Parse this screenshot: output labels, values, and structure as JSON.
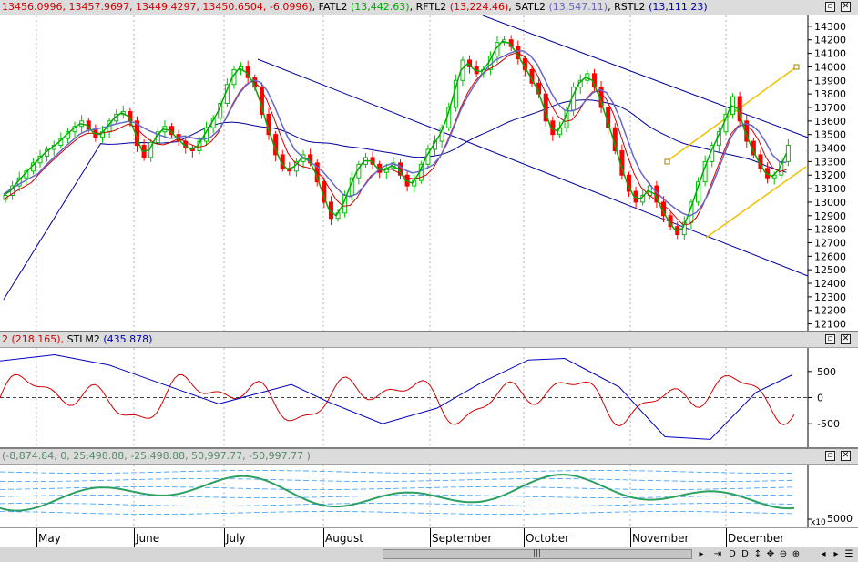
{
  "chart_header": {
    "ohlc": "13456.0996, 13457.9697, 13449.4297, 13450.6504, -6.0996)",
    "fatl_name": "FATL2",
    "fatl_val": "(13,442.63)",
    "rftl_name": "RFTL2",
    "rftl_val": "(13,224.46)",
    "satl_name": "SATL2",
    "satl_val": "(13,547.11)",
    "rstl_name": "RSTL2",
    "rstl_val": "(13,111.23)"
  },
  "osc_header": {
    "left_val": "2 (218.165),",
    "stlm_name": "STLM2",
    "stlm_val": "(435.878)"
  },
  "third_header": {
    "values": "(-8,874.84, 0, 25,498.88, -25,498.88, 50,997.77, -50,997.77 )"
  },
  "colors": {
    "up_candle": "#00c000",
    "down_candle": "#ff0000",
    "fatl": "#00aa00",
    "rftl": "#d00000",
    "satl": "#6666cc",
    "rstl": "#0000a0",
    "trend": "#0000a0",
    "channel": "#f0c000",
    "osc_red": "#d00000",
    "osc_blue": "#0000c0",
    "band": "#3399ff",
    "green_line": "#2ca060"
  },
  "third_panel": {
    "unit_label": "x10"
  },
  "x_axis": {
    "months": [
      "May",
      "June",
      "July",
      "August",
      "September",
      "October",
      "November",
      "December"
    ]
  },
  "chart_data": [
    {
      "type": "candlestick",
      "title": "",
      "y_ticks": [
        14300,
        14200,
        14100,
        14000,
        13900,
        13800,
        13700,
        13600,
        13500,
        13400,
        13300,
        13200,
        13100,
        13000,
        12900,
        12800,
        12700,
        12600,
        12500,
        12400,
        12300,
        12200,
        12100
      ],
      "ylim": [
        12050,
        14380
      ],
      "x_categories": [
        "May",
        "June",
        "July",
        "August",
        "September",
        "October",
        "November",
        "December"
      ],
      "approx_close": [
        13050,
        13120,
        13180,
        13230,
        13290,
        13340,
        13390,
        13420,
        13470,
        13520,
        13560,
        13600,
        13540,
        13480,
        13520,
        13600,
        13650,
        13670,
        13600,
        13420,
        13330,
        13440,
        13520,
        13560,
        13500,
        13450,
        13400,
        13380,
        13450,
        13550,
        13620,
        13730,
        13870,
        13980,
        14000,
        13920,
        13850,
        13650,
        13500,
        13350,
        13250,
        13230,
        13300,
        13350,
        13290,
        13150,
        13000,
        12880,
        12920,
        13050,
        13180,
        13280,
        13330,
        13280,
        13220,
        13250,
        13290,
        13200,
        13120,
        13160,
        13280,
        13390,
        13450,
        13550,
        13700,
        13900,
        14050,
        14000,
        13950,
        13980,
        14080,
        14180,
        14200,
        14150,
        14060,
        13980,
        13880,
        13800,
        13600,
        13500,
        13550,
        13680,
        13850,
        13900,
        13950,
        13850,
        13700,
        13550,
        13380,
        13200,
        13080,
        13000,
        13050,
        13120,
        13000,
        12900,
        12820,
        12760,
        12850,
        13000,
        13150,
        13300,
        13420,
        13520,
        13650,
        13780,
        13600,
        13450,
        13350,
        13250,
        13180,
        13200,
        13300,
        13420
      ],
      "series": [
        {
          "name": "FATL2",
          "last": 13442.63
        },
        {
          "name": "RFTL2",
          "last": 13224.46
        },
        {
          "name": "SATL2",
          "last": 13547.11
        },
        {
          "name": "RSTL2",
          "last": 13111.23
        }
      ]
    },
    {
      "type": "line",
      "title": "",
      "y_ticks": [
        500,
        0,
        -500
      ],
      "ylim": [
        -950,
        950
      ],
      "series": [
        {
          "name": "",
          "last": 218.165
        },
        {
          "name": "STLM2",
          "last": 435.878
        }
      ]
    },
    {
      "type": "line",
      "title": "",
      "y_ticks": [
        5000
      ],
      "levels": [
        -8874.84,
        0,
        25498.88,
        -25498.88,
        50997.77,
        -50997.77
      ]
    }
  ]
}
